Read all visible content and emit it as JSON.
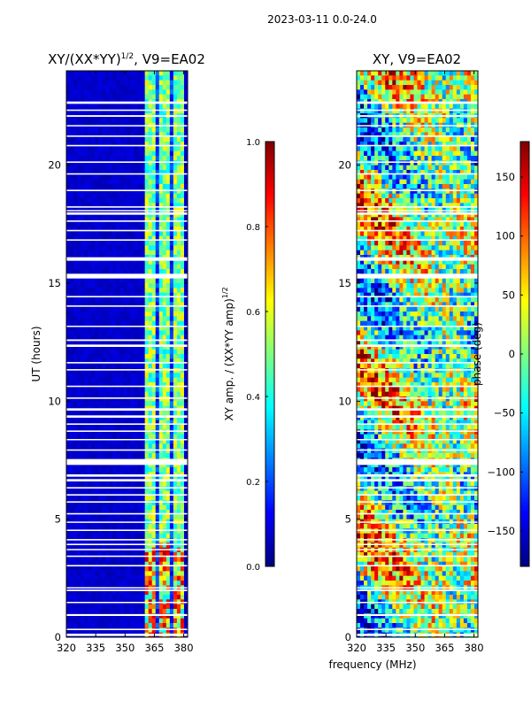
{
  "suptitle": "2023-03-11 0.0-24.0",
  "colors": {
    "jet": [
      "#00007f",
      "#0000ff",
      "#007fff",
      "#00ffff",
      "#7fff7f",
      "#ffff00",
      "#ff7f00",
      "#ff0000",
      "#7f0000"
    ],
    "gap": "#ffffff"
  },
  "chart_data": [
    {
      "type": "heatmap",
      "title": "XY/(XX*YY)",
      "title_sup": "1/2",
      "title_suffix": ", V9=EA02",
      "xlabel": "",
      "ylabel": "UT (hours)",
      "xlim": [
        320,
        382
      ],
      "ylim": [
        0,
        24
      ],
      "xticks": [
        "320",
        "335",
        "350",
        "365",
        "380"
      ],
      "xtick_values": [
        320,
        335,
        350,
        365,
        380
      ],
      "yticks": [
        "0",
        "5",
        "10",
        "15",
        "20"
      ],
      "ytick_values": [
        0,
        5,
        10,
        15,
        20
      ],
      "active_band_mhz": [
        360,
        380
      ],
      "background_value": 0.05,
      "colorbar": {
        "label": "XY amp. / (XX*YY amp)",
        "label_sup": "1/2",
        "range": [
          0.0,
          1.0
        ],
        "ticks": [
          "0.0",
          "0.2",
          "0.4",
          "0.6",
          "0.8",
          "1.0"
        ],
        "tick_values": [
          0.0,
          0.2,
          0.4,
          0.6,
          0.8,
          1.0
        ]
      }
    },
    {
      "type": "heatmap",
      "title": "XY, V9=EA02",
      "xlabel": "frequency (MHz)",
      "ylabel": "",
      "xlim": [
        320,
        382
      ],
      "ylim": [
        0,
        24
      ],
      "xticks": [
        "320",
        "335",
        "350",
        "365",
        "380"
      ],
      "xtick_values": [
        320,
        335,
        350,
        365,
        380
      ],
      "yticks": [
        "0",
        "5",
        "10",
        "15",
        "20"
      ],
      "ytick_values": [
        0,
        5,
        10,
        15,
        20
      ],
      "colorbar": {
        "label": "phase (deg)",
        "range": [
          -180,
          180
        ],
        "ticks": [
          "−150",
          "−100",
          "−50",
          "0",
          "50",
          "100",
          "150"
        ],
        "tick_values": [
          -150,
          -100,
          -50,
          0,
          50,
          100,
          150
        ]
      }
    }
  ],
  "flagged_gaps_ut_hours": [
    [
      0.05,
      0.15
    ],
    [
      0.3,
      0.36
    ],
    [
      0.9,
      0.98
    ],
    [
      1.45,
      1.5
    ],
    [
      1.95,
      2.02
    ],
    [
      2.08,
      2.12
    ],
    [
      3.0,
      3.06
    ],
    [
      3.4,
      3.46
    ],
    [
      3.7,
      3.74
    ],
    [
      3.9,
      3.96
    ],
    [
      4.1,
      4.16
    ],
    [
      4.5,
      4.56
    ],
    [
      4.85,
      4.9
    ],
    [
      5.2,
      5.26
    ],
    [
      5.7,
      5.76
    ],
    [
      6.0,
      6.06
    ],
    [
      6.3,
      6.36
    ],
    [
      6.6,
      6.7
    ],
    [
      6.8,
      6.9
    ],
    [
      7.3,
      7.55
    ],
    [
      7.9,
      7.96
    ],
    [
      8.35,
      8.4
    ],
    [
      8.7,
      8.76
    ],
    [
      9.0,
      9.06
    ],
    [
      9.3,
      9.4
    ],
    [
      9.6,
      9.7
    ],
    [
      10.1,
      10.16
    ],
    [
      10.6,
      10.66
    ],
    [
      11.3,
      11.36
    ],
    [
      11.6,
      11.66
    ],
    [
      12.3,
      12.4
    ],
    [
      12.55,
      12.62
    ],
    [
      13.15,
      13.2
    ],
    [
      14.0,
      14.06
    ],
    [
      14.4,
      14.46
    ],
    [
      15.2,
      15.4
    ],
    [
      15.95,
      16.1
    ],
    [
      16.8,
      16.86
    ],
    [
      17.2,
      17.26
    ],
    [
      17.6,
      17.66
    ],
    [
      17.9,
      18.0
    ],
    [
      18.05,
      18.1
    ],
    [
      18.2,
      18.26
    ],
    [
      18.9,
      18.96
    ],
    [
      19.6,
      19.66
    ],
    [
      20.1,
      20.16
    ],
    [
      20.8,
      20.86
    ],
    [
      21.2,
      21.26
    ],
    [
      21.65,
      21.7
    ],
    [
      22.05,
      22.12
    ],
    [
      22.3,
      22.36
    ],
    [
      22.6,
      22.7
    ]
  ]
}
